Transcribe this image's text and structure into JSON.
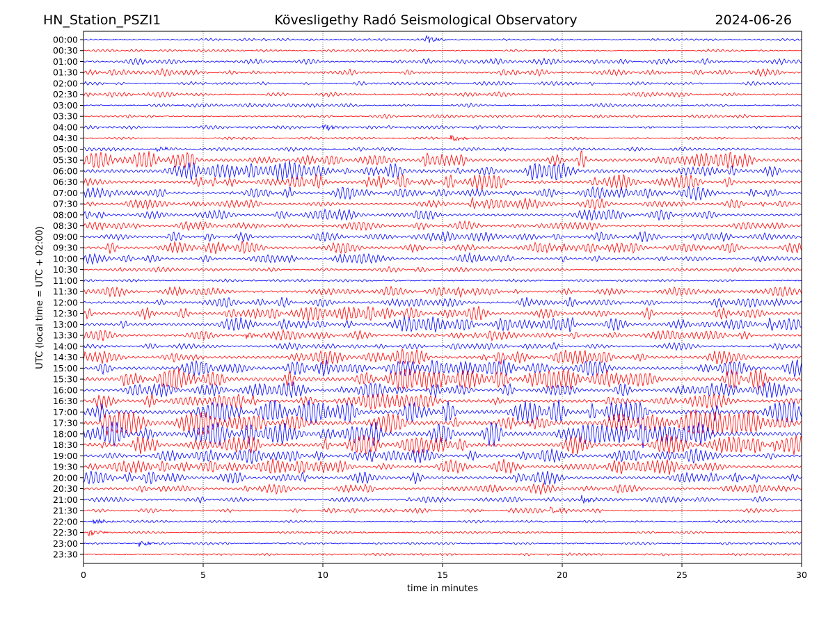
{
  "header": {
    "station": "HN_Station_PSZI1",
    "observatory": "Kövesligethy Radó Seismological Observatory",
    "date": "2024-06-26"
  },
  "chart_data": {
    "type": "line",
    "subtype": "helicorder",
    "xlabel": "time in minutes",
    "ylabel": "UTC (local time = UTC + 02:00)",
    "xlim": [
      0,
      30
    ],
    "xticks": [
      "0",
      "5",
      "10",
      "15",
      "20",
      "25",
      "30"
    ],
    "grid": "vertical dotted at every 5 minutes",
    "colors": [
      "#0000ff",
      "#ff0000"
    ],
    "rows": [
      "00:00",
      "00:30",
      "01:00",
      "01:30",
      "02:00",
      "02:30",
      "03:00",
      "03:30",
      "04:00",
      "04:30",
      "05:00",
      "05:30",
      "06:00",
      "06:30",
      "07:00",
      "07:30",
      "08:00",
      "08:30",
      "09:00",
      "09:30",
      "10:00",
      "10:30",
      "11:00",
      "11:30",
      "12:00",
      "12:30",
      "13:00",
      "13:30",
      "14:00",
      "14:30",
      "15:00",
      "15:30",
      "16:00",
      "16:30",
      "17:00",
      "17:30",
      "18:00",
      "18:30",
      "19:00",
      "19:30",
      "20:00",
      "20:30",
      "21:00",
      "21:30",
      "22:00",
      "22:30",
      "23:00",
      "23:30"
    ],
    "relative_amplitude": [
      0.1,
      0.1,
      0.25,
      0.3,
      0.15,
      0.2,
      0.15,
      0.15,
      0.15,
      0.1,
      0.15,
      0.7,
      0.8,
      0.6,
      0.5,
      0.45,
      0.45,
      0.35,
      0.4,
      0.5,
      0.4,
      0.2,
      0.1,
      0.4,
      0.45,
      0.6,
      0.6,
      0.4,
      0.3,
      0.6,
      0.7,
      0.9,
      0.6,
      0.6,
      0.9,
      1.0,
      1.0,
      0.8,
      0.6,
      0.55,
      0.55,
      0.4,
      0.25,
      0.2,
      0.1,
      0.1,
      0.1,
      0.1
    ],
    "bursts": [
      {
        "row": "00:00",
        "minute": 14.3
      },
      {
        "row": "04:00",
        "minute": 10.0
      },
      {
        "row": "04:30",
        "minute": 15.3
      },
      {
        "row": "05:00",
        "minute": 3.0
      },
      {
        "row": "13:30",
        "minute": 6.8
      },
      {
        "row": "21:00",
        "minute": 20.8
      },
      {
        "row": "21:30",
        "minute": 19.5
      },
      {
        "row": "22:00",
        "minute": 0.3
      },
      {
        "row": "22:30",
        "minute": 0.2
      },
      {
        "row": "23:00",
        "minute": 2.3
      }
    ]
  }
}
